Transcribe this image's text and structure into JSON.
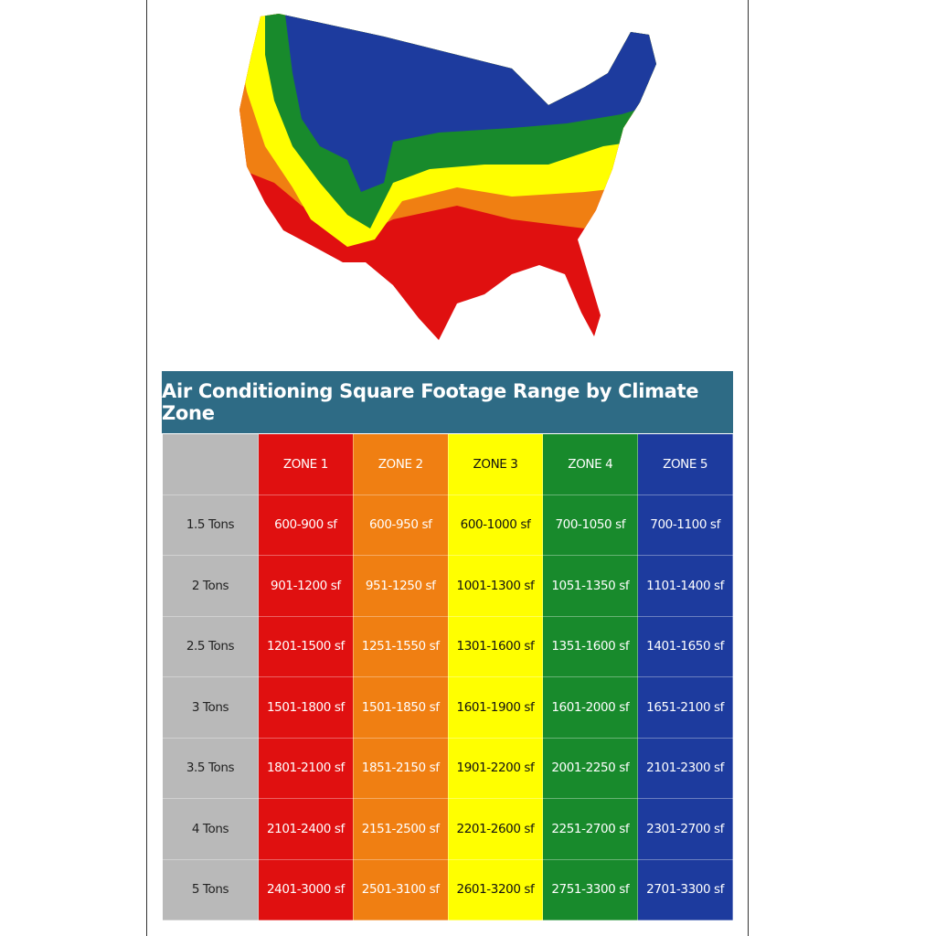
{
  "header": {
    "title": "Air Conditioning Square Footage Range by Climate Zone"
  },
  "table": {
    "columns": [
      "ZONE 1",
      "ZONE 2",
      "ZONE 3",
      "ZONE 4",
      "ZONE 5"
    ],
    "rows": [
      [
        "1.5 Tons",
        "600-900 sf",
        "600-950 sf",
        "600-1000 sf",
        "700-1050 sf",
        "700-1100 sf"
      ],
      [
        "2 Tons",
        "901-1200 sf",
        "951-1250 sf",
        "1001-1300 sf",
        "1051-1350 sf",
        "1101-1400 sf"
      ],
      [
        "2.5 Tons",
        "1201-1500 sf",
        "1251-1550 sf",
        "1301-1600 sf",
        "1351-1600 sf",
        "1401-1650 sf"
      ],
      [
        "3 Tons",
        "1501-1800 sf",
        "1501-1850 sf",
        "1601-1900 sf",
        "1601-2000 sf",
        "1651-2100 sf"
      ],
      [
        "3.5 Tons",
        "1801-2100 sf",
        "1851-2150 sf",
        "1901-2200 sf",
        "2001-2250 sf",
        "2101-2300 sf"
      ],
      [
        "4 Tons",
        "2101-2400 sf",
        "2151-2500 sf",
        "2201-2600 sf",
        "2251-2700 sf",
        "2301-2700 sf"
      ],
      [
        "5 Tons",
        "2401-3000 sf",
        "2501-3100 sf",
        "2601-3200 sf",
        "2751-3300 sf",
        "2701-3300 sf"
      ]
    ]
  }
}
